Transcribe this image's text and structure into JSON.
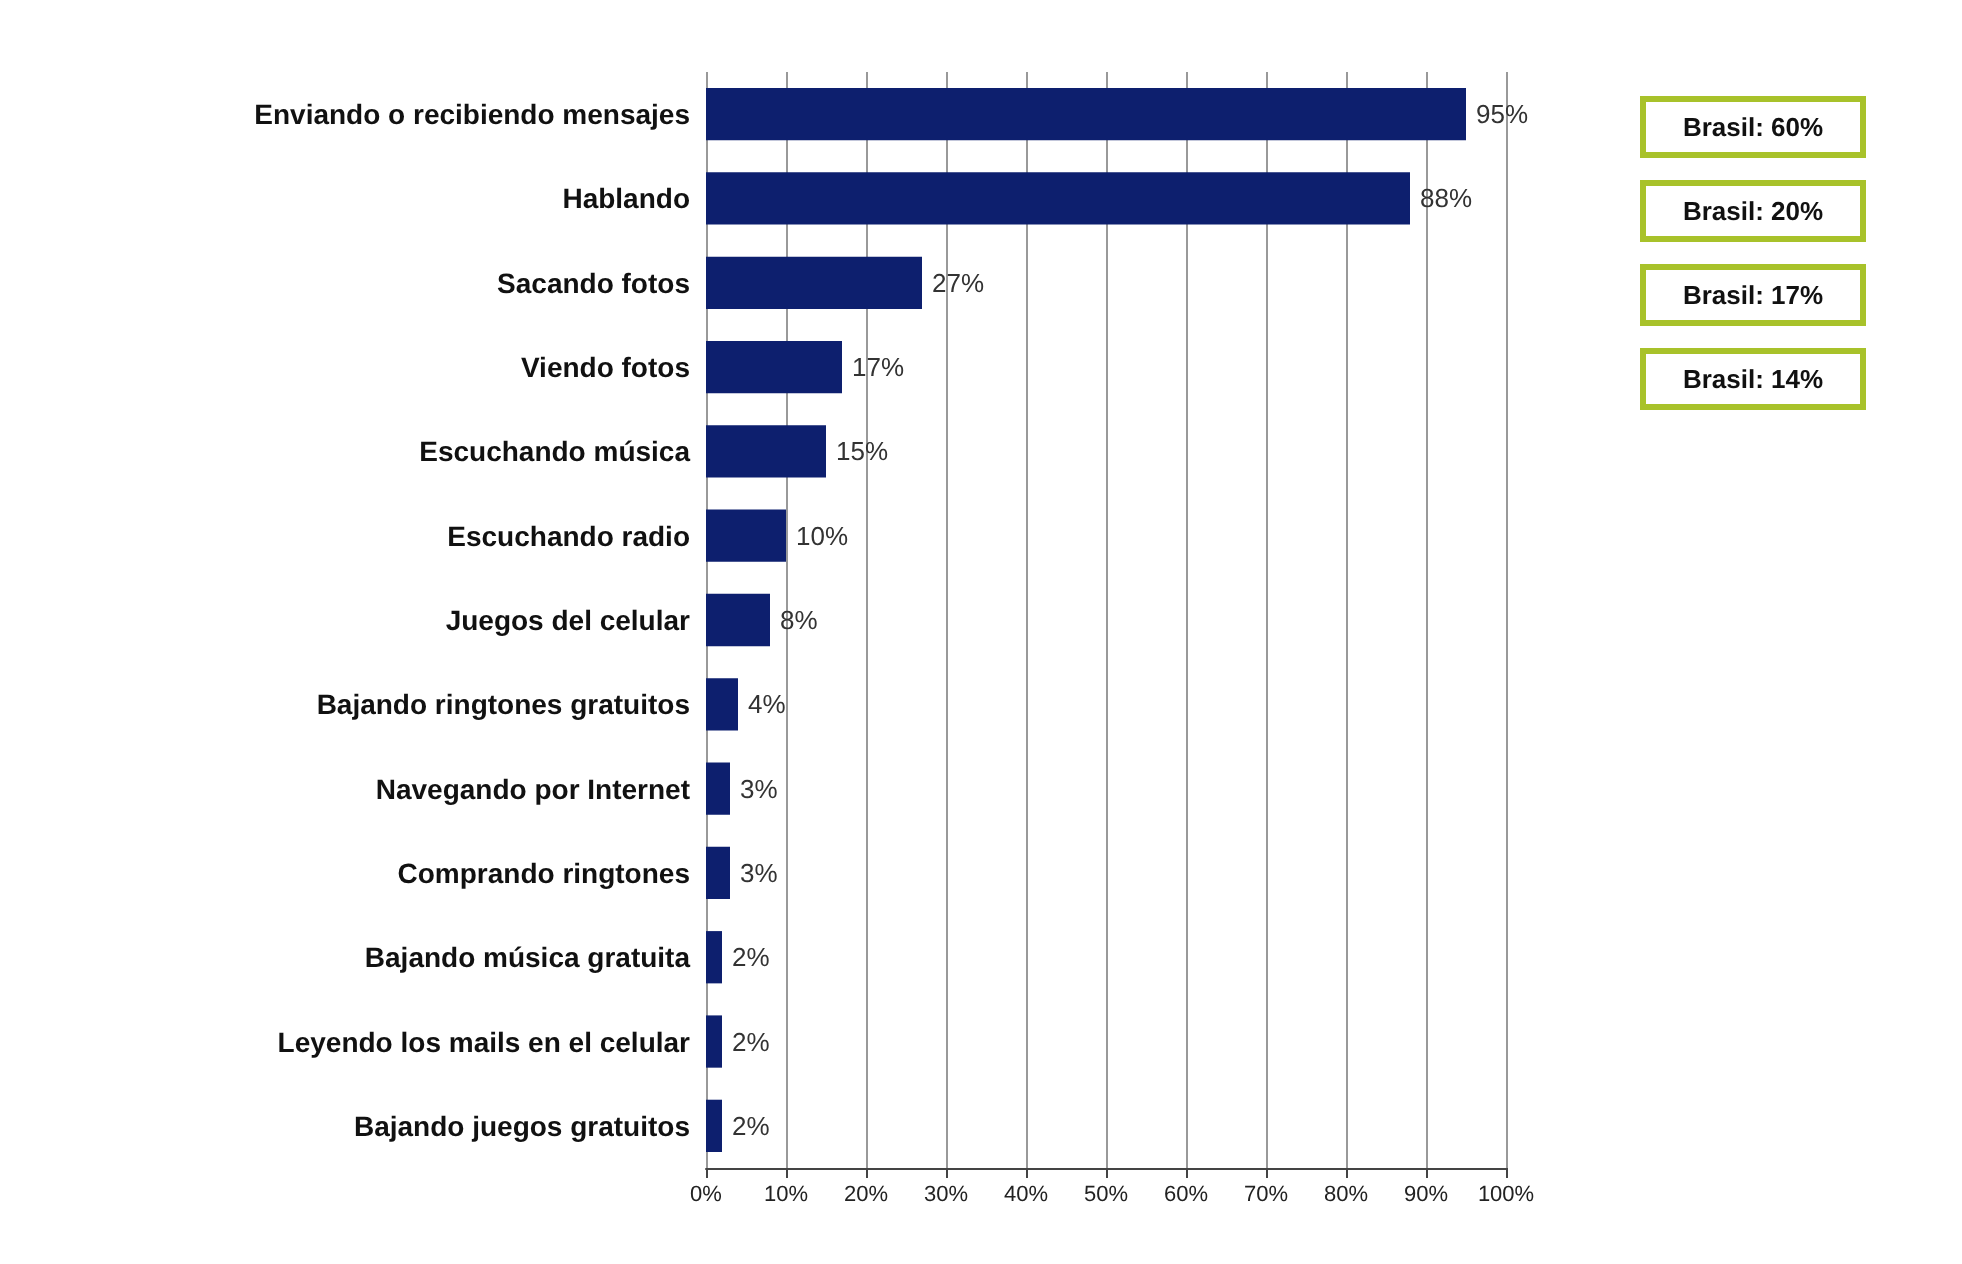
{
  "chart_data": {
    "type": "bar",
    "orientation": "horizontal",
    "categories": [
      "Enviando o recibiendo mensajes",
      "Hablando",
      "Sacando fotos",
      "Viendo fotos",
      "Escuchando música",
      "Escuchando radio",
      "Juegos del celular",
      "Bajando ringtones gratuitos",
      "Navegando por Internet",
      "Comprando ringtones",
      "Bajando música gratuita",
      "Leyendo los mails en el celular",
      "Bajando juegos gratuitos"
    ],
    "values": [
      95,
      88,
      27,
      17,
      15,
      10,
      8,
      4,
      3,
      3,
      2,
      2,
      2
    ],
    "value_labels": [
      "95%",
      "88%",
      "27%",
      "17%",
      "15%",
      "10%",
      "8%",
      "4%",
      "3%",
      "3%",
      "2%",
      "2%",
      "2%"
    ],
    "color": "#0d1f6e",
    "xlim": [
      0,
      100
    ],
    "xticks": [
      {
        "value": 0,
        "label": "0%"
      },
      {
        "value": 10,
        "label": "10%"
      },
      {
        "value": 20,
        "label": "20%"
      },
      {
        "value": 30,
        "label": "30%"
      },
      {
        "value": 40,
        "label": "40%"
      },
      {
        "value": 50,
        "label": "50%"
      },
      {
        "value": 60,
        "label": "60%"
      },
      {
        "value": 70,
        "label": "70%"
      },
      {
        "value": 80,
        "label": "80%"
      },
      {
        "value": 90,
        "label": "90%"
      },
      {
        "value": 100,
        "label": "100%"
      }
    ],
    "grid": "x",
    "annotations": [
      "Brasil: 60%",
      "Brasil: 20%",
      "Brasil: 17%",
      "Brasil: 14%"
    ]
  }
}
